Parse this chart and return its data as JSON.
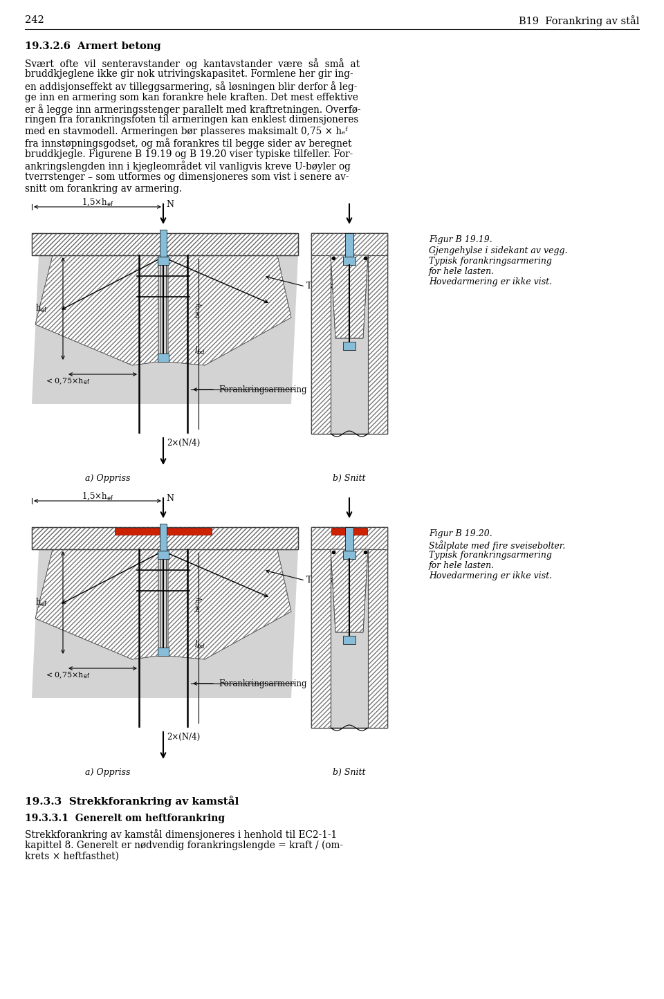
{
  "page_number": "242",
  "header_right": "B19  Forankring av stål",
  "section_title": "19.3.2.6  Armert betong",
  "para1_lines": [
    "Svært  ofte  vil  senteravstander  og  kantavstander  være  så  små  at",
    "bruddkjeglene ikke gir nok utrivingskapasitet. Formlene her gir ing-",
    "en addisjonseffekt av tilleggsarmering, så løsningen blir derfor å leg-",
    "ge inn en armering som kan forankre hele kraften. Det mest effektive",
    "er å legge inn armeringsstenger parallelt med kraftretningen. Overfø-",
    "ringen fra forankringsfoten til armeringen kan enklest dimensjoneres",
    "med en stavmodell. Armeringen bør plasseres maksimalt 0,75 × hₑᶠ",
    "fra innstøpningsgodset, og må forankres til begge sider av beregnet",
    "bruddkjegle. Figurene B 19.19 og B 19.20 viser typiske tilfeller. For-",
    "ankringslengden inn i kjegleområdet vil vanligvis kreve U-bøyler og",
    "tverrstenger – som utformes og dimensjoneres som vist i senere av-",
    "snitt om forankring av armering."
  ],
  "fig1_caption_title": "Figur B 19.19.",
  "fig1_caption_lines": [
    "Gjengehylse i sidekant av vegg.",
    "Typisk forankringsarmering",
    "for hele lasten.",
    "Hovedarmering er ikke vist."
  ],
  "fig2_caption_title": "Figur B 19.20.",
  "fig2_caption_lines": [
    "Stålplate med fire sveisebolter.",
    "Typisk forankringsarmering",
    "for hele lasten.",
    "Hovedarmering er ikke vist."
  ],
  "fig1_label_a": "a) Oppriss",
  "fig1_label_b": "b) Snitt",
  "fig2_label_a": "a) Oppriss",
  "fig2_label_b": "b) Snitt",
  "section2_title": "19.3.3  Strekkforankring av kamstål",
  "section2_sub": "19.3.3.1  Generelt om heftforankring",
  "para2_lines": [
    "Strekkforankring av kamstål dimensjoneres i henhold til EC2-1-1",
    "kapittel 8. Generelt er nødvendig forankringslengde = kraft / (om-",
    "krets × heftfasthet)"
  ],
  "bg_color": "#ffffff",
  "text_color": "#000000",
  "gray_light": "#d3d3d3",
  "hatch_color": "#777777",
  "blue_color": "#87bdd8",
  "red_color": "#cc2200",
  "line_color": "#000000"
}
